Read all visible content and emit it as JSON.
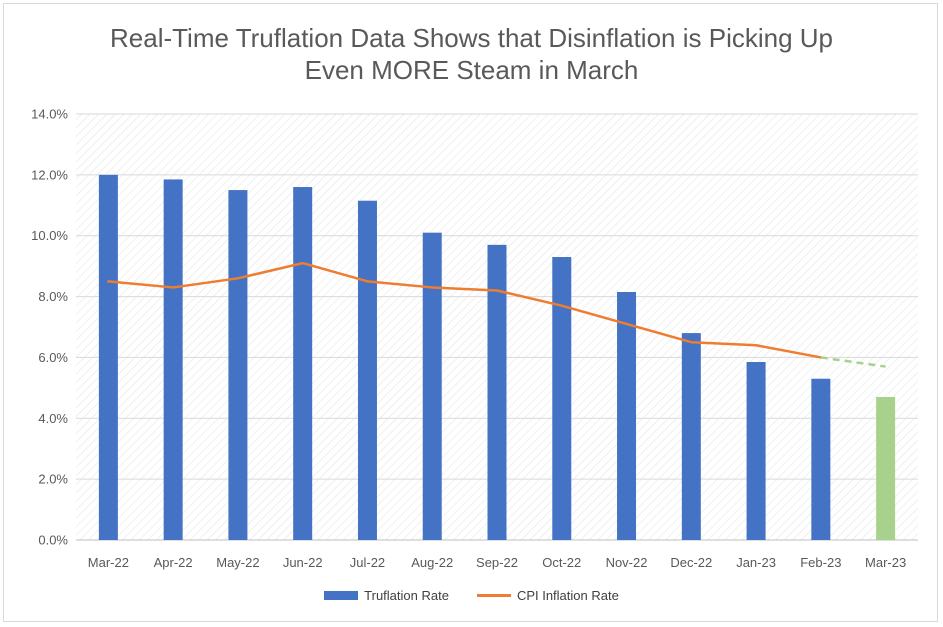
{
  "chart_data": {
    "type": "bar",
    "title": "Real-Time Truflation Data Shows that Disinflation is Picking Up\nEven MORE Steam in March",
    "categories": [
      "Mar-22",
      "Apr-22",
      "May-22",
      "Jun-22",
      "Jul-22",
      "Aug-22",
      "Sep-22",
      "Oct-22",
      "Nov-22",
      "Dec-22",
      "Jan-23",
      "Feb-23",
      "Mar-23"
    ],
    "ylim": [
      0,
      14
    ],
    "yticks": [
      0,
      2,
      4,
      6,
      8,
      10,
      12,
      14
    ],
    "ytick_labels": [
      "0.0%",
      "2.0%",
      "4.0%",
      "6.0%",
      "8.0%",
      "10.0%",
      "12.0%",
      "14.0%"
    ],
    "grid": true,
    "legend_position": "bottom",
    "series": [
      {
        "name": "Truflation Rate",
        "kind": "bar",
        "color": "#4472C4",
        "highlight_color": "#A9D18E",
        "highlight_index": 12,
        "values": [
          12.0,
          11.85,
          11.5,
          11.6,
          11.15,
          10.1,
          9.7,
          9.3,
          8.15,
          6.8,
          5.85,
          5.3,
          4.7
        ]
      },
      {
        "name": "CPI Inflation Rate",
        "kind": "line",
        "color": "#ED7D31",
        "projection_color": "#A9D18E",
        "values": [
          8.5,
          8.3,
          8.6,
          9.1,
          8.5,
          8.3,
          8.2,
          7.7,
          7.1,
          6.5,
          6.4,
          6.0,
          5.7
        ],
        "projected_from_index": 11
      }
    ]
  }
}
